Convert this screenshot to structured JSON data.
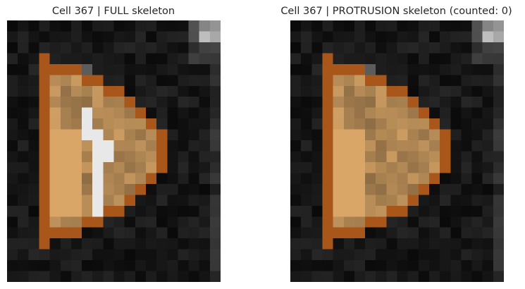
{
  "panels": [
    {
      "title": "Cell 367 | FULL skeleton",
      "skeleton_overlay": true
    },
    {
      "title": "Cell 367 | PROTRUSION skeleton (counted: 0)",
      "skeleton_overlay": false
    }
  ],
  "colors": {
    "background": "#000000",
    "cell_outline": "#a9561b",
    "cell_interior": "#b88d58",
    "skeleton": "#e8e8e8"
  }
}
